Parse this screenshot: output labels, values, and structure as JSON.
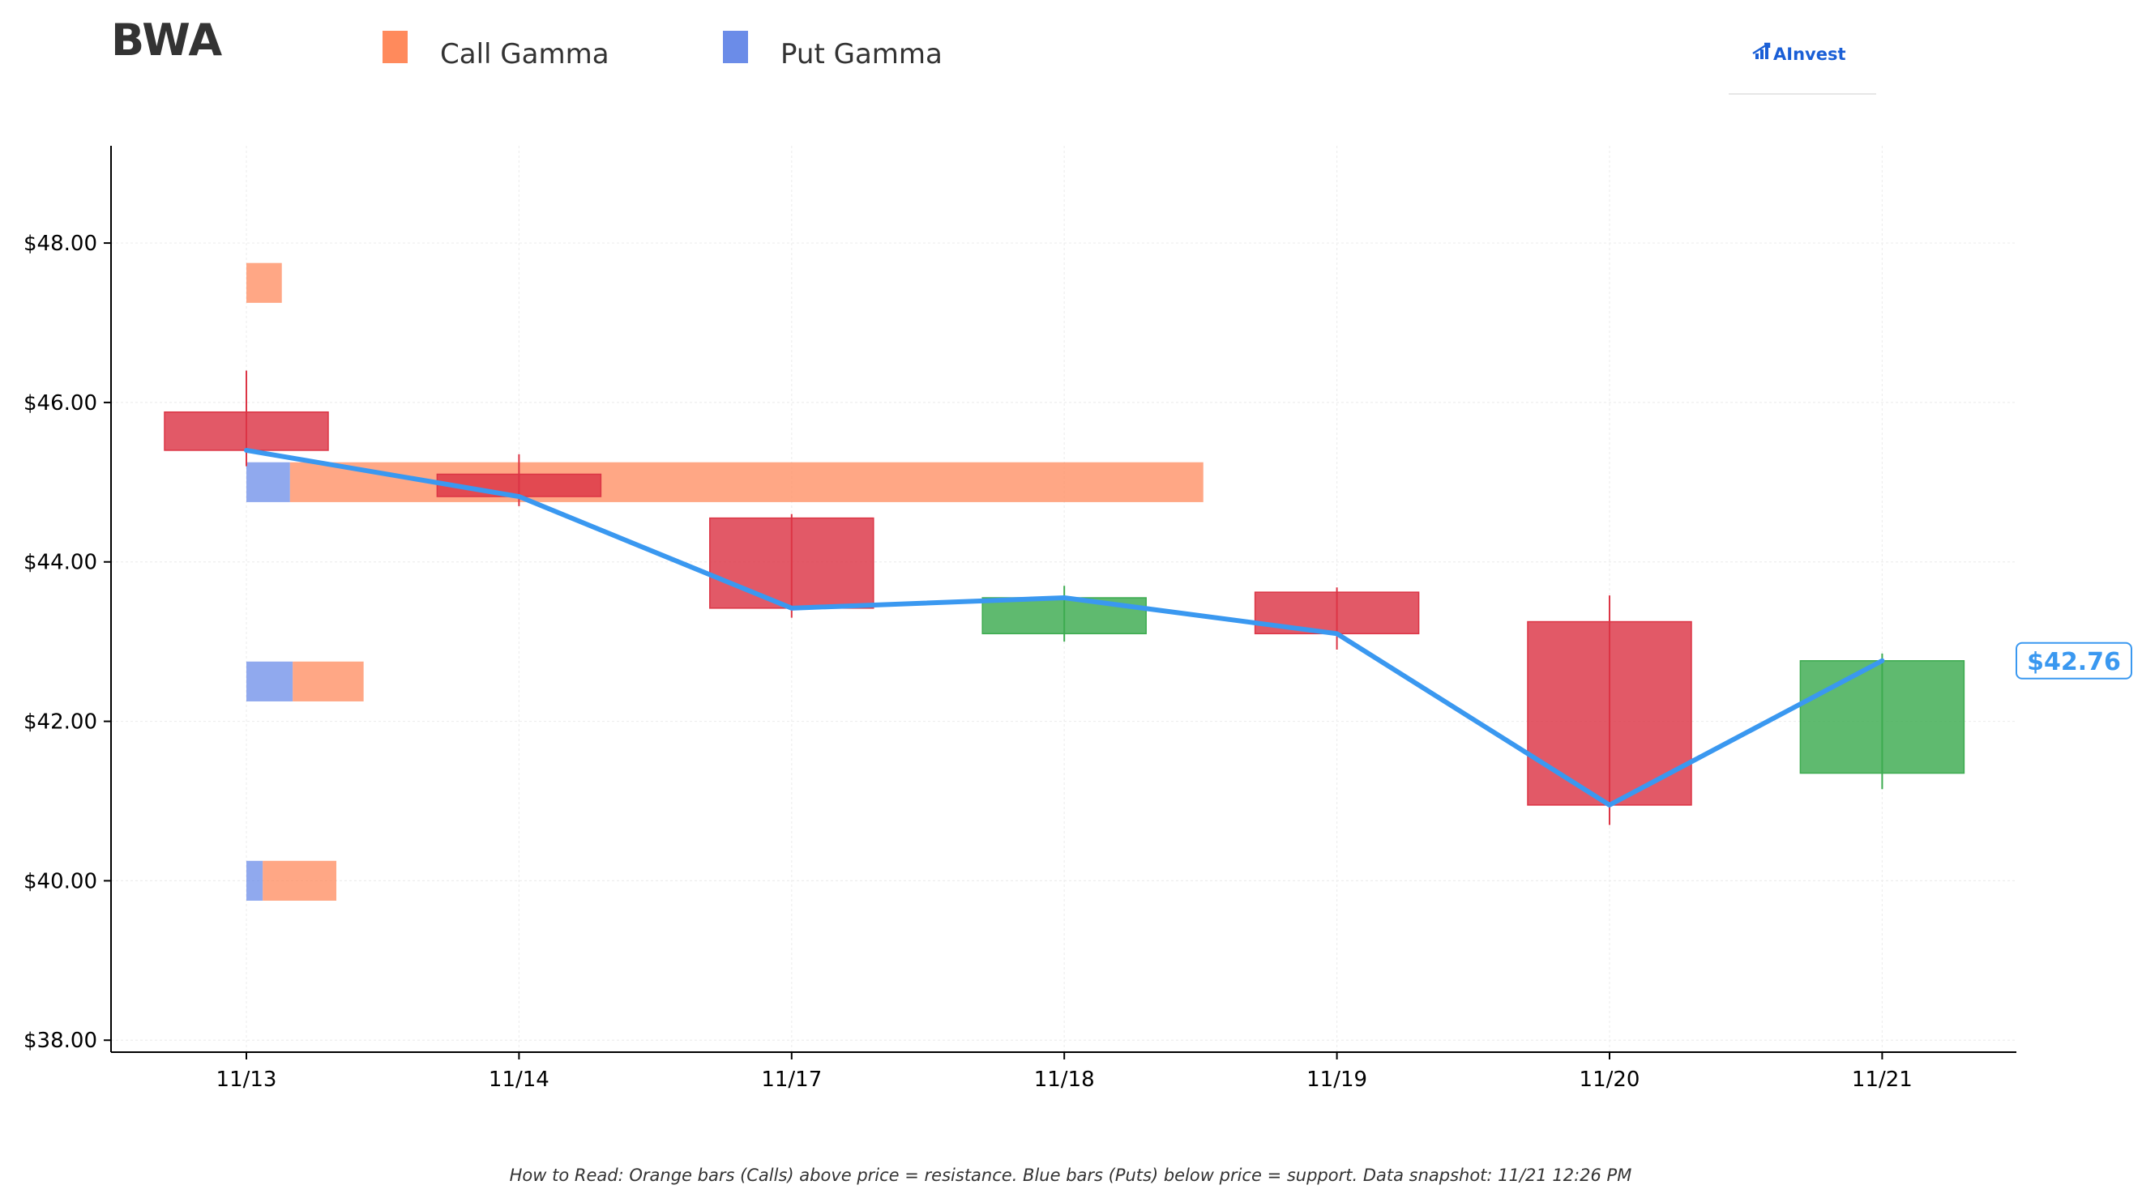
{
  "colors": {
    "call": "#ff8a5c",
    "put": "#6b8ce8",
    "up": "#3cab4f",
    "down": "#dc3545",
    "line": "#3a98f0",
    "axis": "#000000",
    "grid": "#eeeeee",
    "text": "#333333"
  },
  "header": {
    "ticker": "BWA",
    "legend": [
      {
        "label": "Call Gamma",
        "color": "#ff8a5c"
      },
      {
        "label": "Put Gamma",
        "color": "#6b8ce8"
      }
    ],
    "logo_text": "AInvest",
    "logo_icon": "chart-bars-arrow-icon"
  },
  "footnote": "How to Read: Orange bars (Calls) above price = resistance. Blue bars (Puts) below price = support. Data snapshot: 11/21 12:26 PM",
  "chart_data": {
    "type": "candlestick",
    "title": "BWA",
    "x": [
      "11/13",
      "11/14",
      "11/17",
      "11/18",
      "11/19",
      "11/20",
      "11/21"
    ],
    "ylim": [
      37.85,
      49.22
    ],
    "yticks": [
      38,
      40,
      42,
      44,
      46,
      48
    ],
    "ytick_labels": [
      "$38.00",
      "$40.00",
      "$42.00",
      "$44.00",
      "$46.00",
      "$48.00"
    ],
    "candles": [
      {
        "date": "11/13",
        "open": 45.88,
        "close": 45.4,
        "high": 46.4,
        "low": 45.2
      },
      {
        "date": "11/14",
        "open": 45.1,
        "close": 44.82,
        "high": 45.35,
        "low": 44.7
      },
      {
        "date": "11/17",
        "open": 44.55,
        "close": 43.42,
        "high": 44.6,
        "low": 43.3
      },
      {
        "date": "11/18",
        "open": 43.1,
        "close": 43.55,
        "high": 43.7,
        "low": 43.0
      },
      {
        "date": "11/19",
        "open": 43.62,
        "close": 43.1,
        "high": 43.68,
        "low": 42.9
      },
      {
        "date": "11/20",
        "open": 43.25,
        "close": 40.95,
        "high": 43.58,
        "low": 40.7
      },
      {
        "date": "11/21",
        "open": 41.35,
        "close": 42.76,
        "high": 42.85,
        "low": 41.15
      }
    ],
    "close_line": [
      45.4,
      44.82,
      43.42,
      43.55,
      43.1,
      40.95,
      42.76
    ],
    "current_price": 42.76,
    "current_price_label": "$42.76",
    "gamma_bars": [
      {
        "strike": 47.5,
        "call": 0.13,
        "put": 0.0
      },
      {
        "strike": 45.0,
        "call": 3.35,
        "put": 0.16
      },
      {
        "strike": 42.5,
        "call": 0.26,
        "put": 0.17
      },
      {
        "strike": 40.0,
        "call": 0.27,
        "put": 0.06
      }
    ],
    "gamma_units": "relative length in date-spacing units from 11/13",
    "legend": [
      "Call Gamma",
      "Put Gamma"
    ],
    "legend_position": "top",
    "grid": true
  }
}
